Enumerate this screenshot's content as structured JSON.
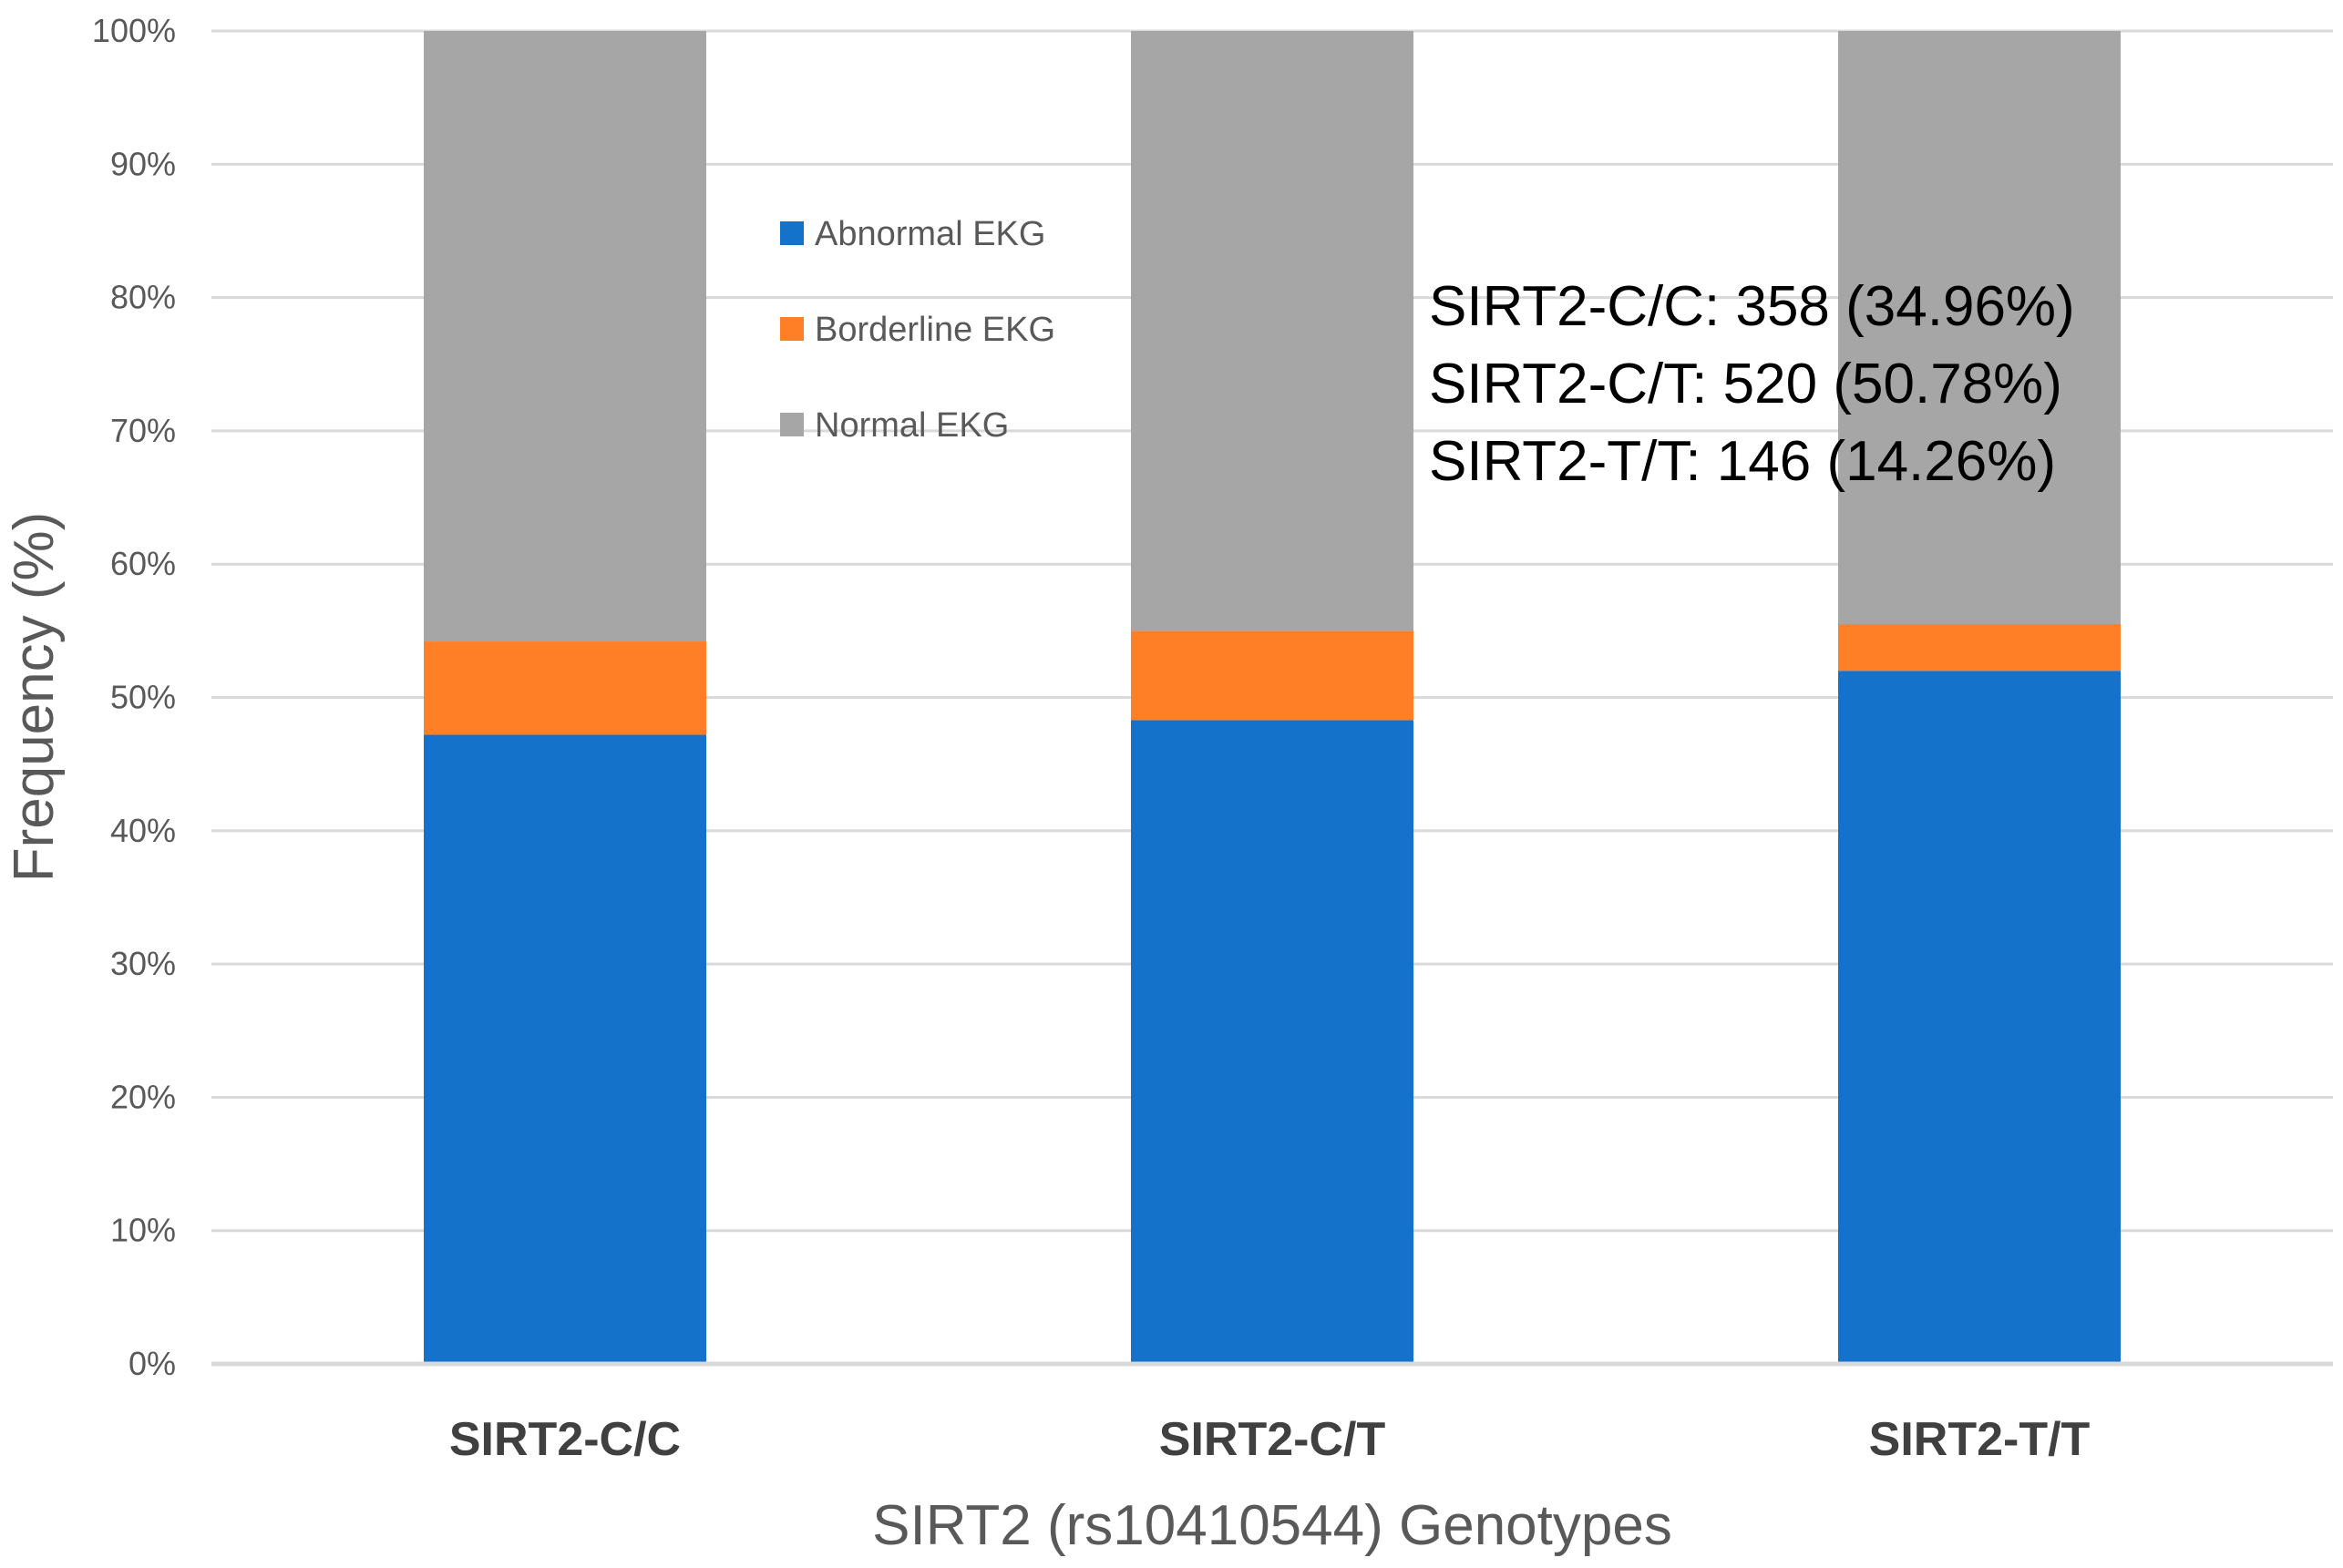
{
  "chart_data": {
    "type": "bar",
    "stacked": true,
    "title": "",
    "xlabel": "SIRT2 (rs10410544) Genotypes",
    "ylabel": "Frequency (%)",
    "ylim": [
      0,
      100
    ],
    "y_ticks": [
      "0%",
      "10%",
      "20%",
      "30%",
      "40%",
      "50%",
      "60%",
      "70%",
      "80%",
      "90%",
      "100%"
    ],
    "categories": [
      "SIRT2-C/C",
      "SIRT2-C/T",
      "SIRT2-T/T"
    ],
    "series": [
      {
        "name": "Abnormal EKG",
        "color": "#1572CB",
        "values": [
          47.2,
          48.3,
          52.0
        ]
      },
      {
        "name": "Borderline EKG",
        "color": "#FF7F27",
        "values": [
          7.0,
          6.7,
          3.5
        ]
      },
      {
        "name": "Normal EKG",
        "color": "#A6A6A6",
        "values": [
          45.8,
          45.0,
          44.5
        ]
      }
    ],
    "legend_position": "top-left inside plot",
    "grid": true,
    "annotations": [
      "SIRT2-C/C: 358 (34.96%)",
      "SIRT2-C/T: 520 (50.78%)",
      "SIRT2-T/T: 146 (14.26%)"
    ]
  }
}
